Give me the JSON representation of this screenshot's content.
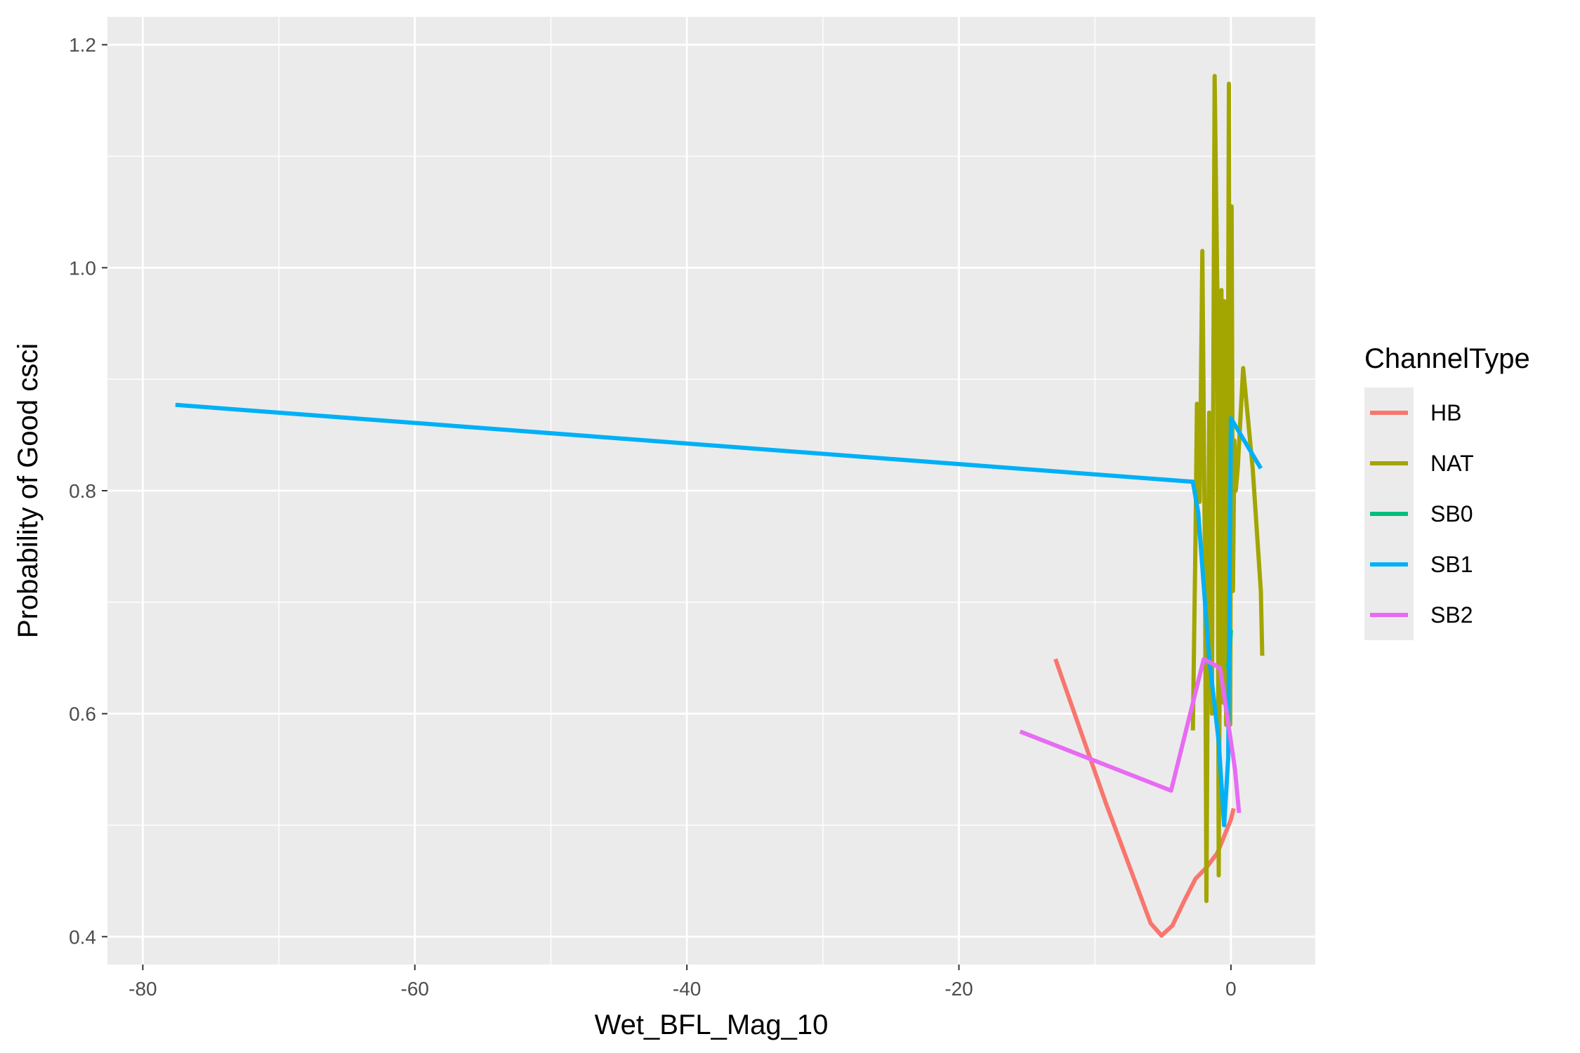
{
  "chart_data": {
    "type": "line",
    "title": "",
    "xlabel": "Wet_BFL_Mag_10",
    "ylabel": "Probability of Good csci",
    "xlim": [
      -82.6,
      6.2
    ],
    "ylim": [
      0.375,
      1.225
    ],
    "x_ticks": [
      -80,
      -60,
      -40,
      -20,
      0
    ],
    "x_tick_labels": [
      "-80",
      "-60",
      "-40",
      "-20",
      "0"
    ],
    "x_minor_ticks": [
      -70,
      -50,
      -30,
      -10
    ],
    "y_ticks": [
      0.4,
      0.6,
      0.8,
      1.0,
      1.2
    ],
    "y_tick_labels": [
      "0.4",
      "0.6",
      "0.8",
      "1.0",
      "1.2"
    ],
    "y_minor_ticks": [
      0.5,
      0.7,
      0.9,
      1.1
    ],
    "grid": true,
    "legend": {
      "title": "ChannelType",
      "position": "right"
    },
    "series": [
      {
        "name": "HB",
        "color": "#F8766D",
        "x": [
          -12.9,
          -9.2,
          -5.9,
          -5.1,
          -4.3,
          -3.4,
          -2.6,
          -1.8,
          -1.0,
          -0.5,
          0.0,
          0.2
        ],
        "y": [
          0.649,
          0.52,
          0.412,
          0.401,
          0.41,
          0.433,
          0.452,
          0.462,
          0.475,
          0.49,
          0.505,
          0.515
        ]
      },
      {
        "name": "NAT",
        "color": "#A3A500",
        "x": [
          -2.8,
          -2.6,
          -2.5,
          -2.3,
          -2.1,
          -1.9,
          -1.8,
          -1.7,
          -1.6,
          -1.4,
          -1.2,
          -1.0,
          -0.9,
          -0.7,
          -0.6,
          -0.5,
          -0.35,
          -0.25,
          -0.15,
          -0.05,
          0.05,
          0.15,
          0.25,
          0.35,
          0.5,
          0.9,
          1.6,
          2.2,
          2.3
        ],
        "y": [
          0.585,
          0.76,
          0.878,
          0.79,
          1.015,
          0.72,
          0.432,
          0.66,
          0.87,
          0.6,
          1.172,
          0.98,
          0.455,
          0.98,
          0.61,
          0.97,
          0.59,
          0.77,
          1.165,
          0.59,
          1.055,
          0.71,
          0.845,
          0.8,
          0.82,
          0.91,
          0.82,
          0.71,
          0.652
        ]
      },
      {
        "name": "SB0",
        "color": "#00BF7D",
        "x": [
          -0.2,
          -0.1,
          0.0
        ],
        "y": [
          0.64,
          0.66,
          0.675
        ]
      },
      {
        "name": "SB1",
        "color": "#00B0F6",
        "x": [
          -77.6,
          -2.8,
          -2.4,
          -1.6,
          -0.9,
          -0.5,
          -0.2,
          0.0,
          2.2
        ],
        "y": [
          0.877,
          0.808,
          0.78,
          0.65,
          0.575,
          0.5,
          0.56,
          0.865,
          0.82
        ]
      },
      {
        "name": "SB2",
        "color": "#E76BF3",
        "x": [
          -15.5,
          -4.4,
          -2.0,
          -0.8,
          -0.3,
          0.3,
          0.6
        ],
        "y": [
          0.584,
          0.531,
          0.649,
          0.641,
          0.6,
          0.55,
          0.511
        ]
      }
    ]
  }
}
